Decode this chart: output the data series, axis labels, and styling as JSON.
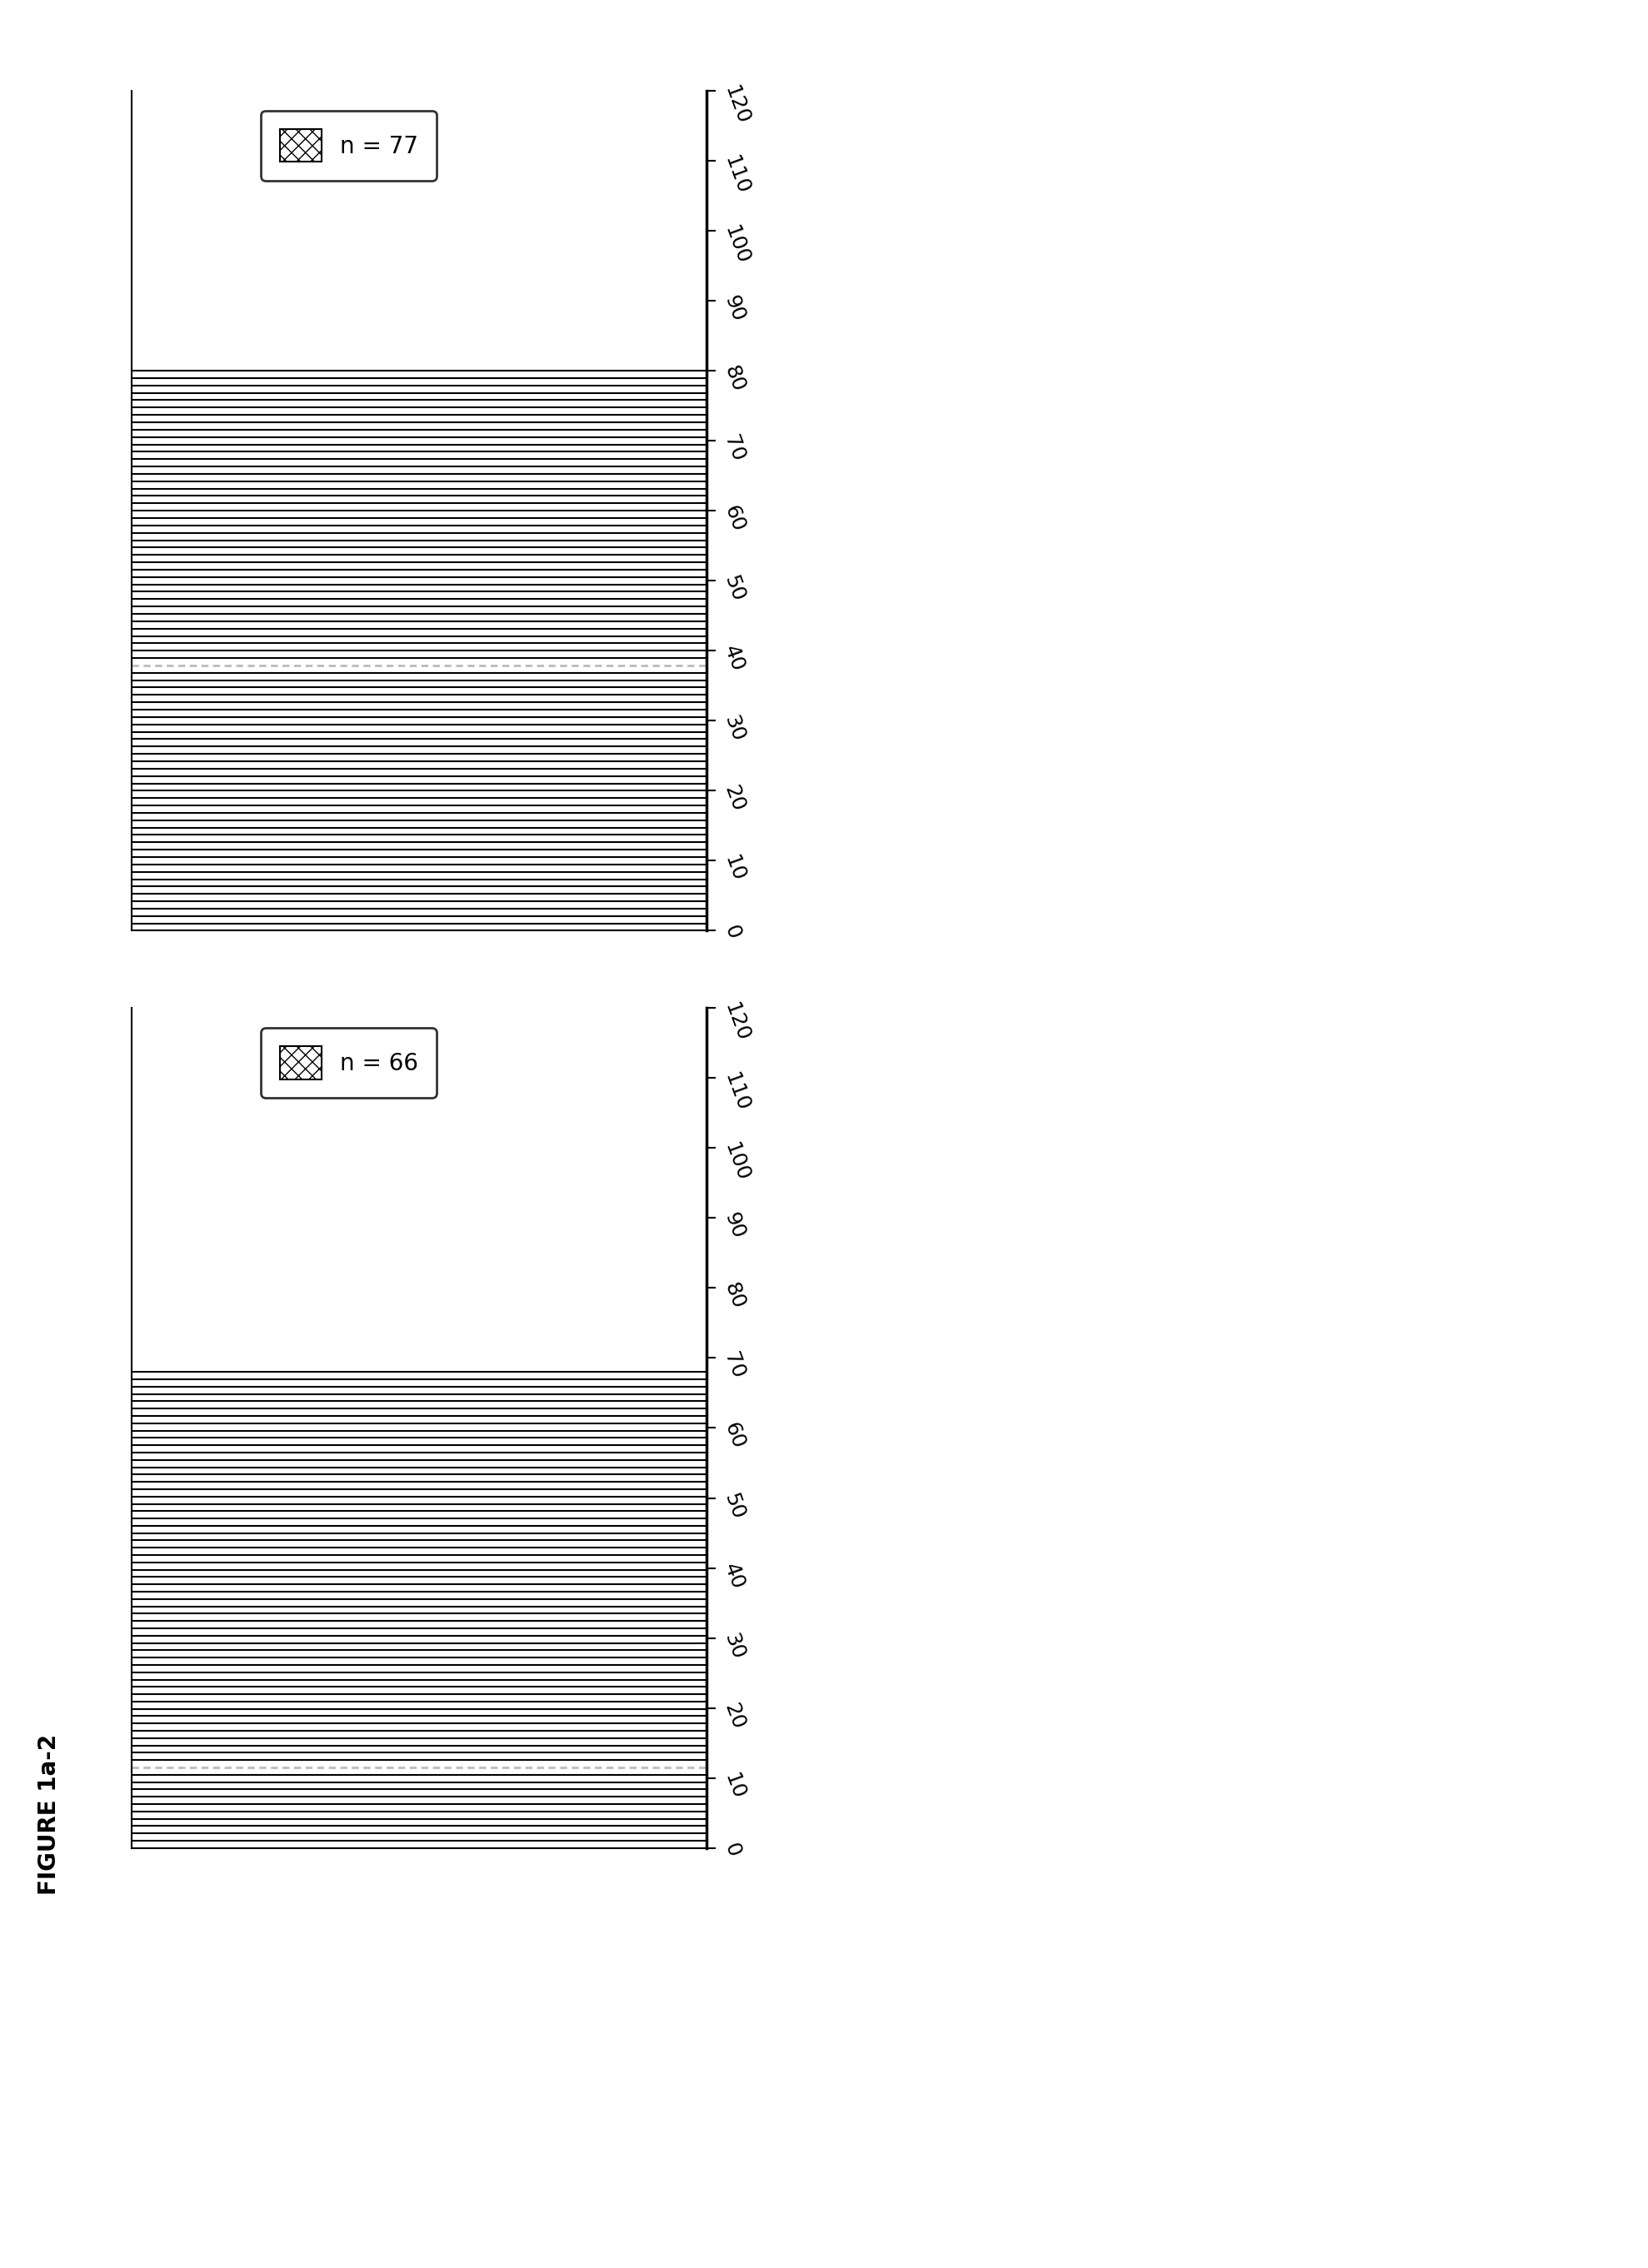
{
  "figure_label": "FIGURE 1a-2",
  "top_chart": {
    "n": 77,
    "label": "n = 77",
    "ymax": 120,
    "yticks": [
      0,
      10,
      20,
      30,
      40,
      50,
      60,
      70,
      80,
      90,
      100,
      110,
      120
    ],
    "num_bars": 77,
    "special_bar_positions": [
      7,
      8,
      14,
      15,
      16,
      17,
      46
    ],
    "bar_spacing_positions": [
      0.65,
      1.3,
      2.6,
      3.9,
      4.55,
      5.2,
      5.85,
      6.5,
      7.15,
      7.8,
      8.45,
      9.1,
      10.4,
      11.05,
      11.7,
      12.35,
      13.0,
      13.65,
      14.95,
      15.6,
      16.25,
      16.9,
      17.55,
      18.2,
      18.85,
      19.5,
      20.15,
      20.8,
      21.45,
      22.1,
      22.75,
      23.4,
      24.05,
      24.7,
      25.35,
      26.0,
      26.65,
      27.3,
      27.95,
      28.6,
      29.25,
      29.9,
      30.55,
      31.2,
      31.85,
      32.5,
      33.15,
      33.8,
      34.45,
      35.1,
      35.75,
      36.4,
      37.05,
      37.7,
      38.35,
      39.0,
      39.65,
      40.3,
      40.95,
      41.6,
      42.25,
      42.9,
      43.55,
      44.2,
      44.85,
      45.5,
      46.15,
      46.8,
      47.45,
      48.1,
      48.75,
      49.4,
      50.05,
      50.7,
      51.35,
      52.0,
      52.65
    ]
  },
  "bottom_chart": {
    "n": 66,
    "label": "n = 66",
    "ymax": 120,
    "yticks": [
      0,
      10,
      20,
      30,
      40,
      50,
      60,
      70,
      80,
      90,
      100,
      110,
      120
    ],
    "num_bars": 66,
    "special_bar_positions": [
      11,
      12,
      13,
      32,
      33
    ]
  },
  "background_color": "#ffffff",
  "bar_color": "#000000",
  "dotted_bar_color": "#aaaaaa",
  "tick_fontsize": 18,
  "legend_fontsize": 20,
  "figure_label_fontsize": 20
}
